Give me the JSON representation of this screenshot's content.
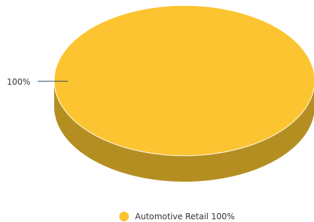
{
  "chart_data": {
    "type": "pie",
    "style": "3d",
    "categories": [
      "Automotive Retail"
    ],
    "values": [
      100
    ],
    "data_labels": [
      "100%"
    ],
    "legend": {
      "position": "bottom",
      "entries": [
        "Automotive Retail 100%"
      ]
    },
    "colors": {
      "top": "#FCC430",
      "side": "#B58E22",
      "legend_marker": "#FCC430",
      "leader_line": "#1F3F5F"
    }
  }
}
